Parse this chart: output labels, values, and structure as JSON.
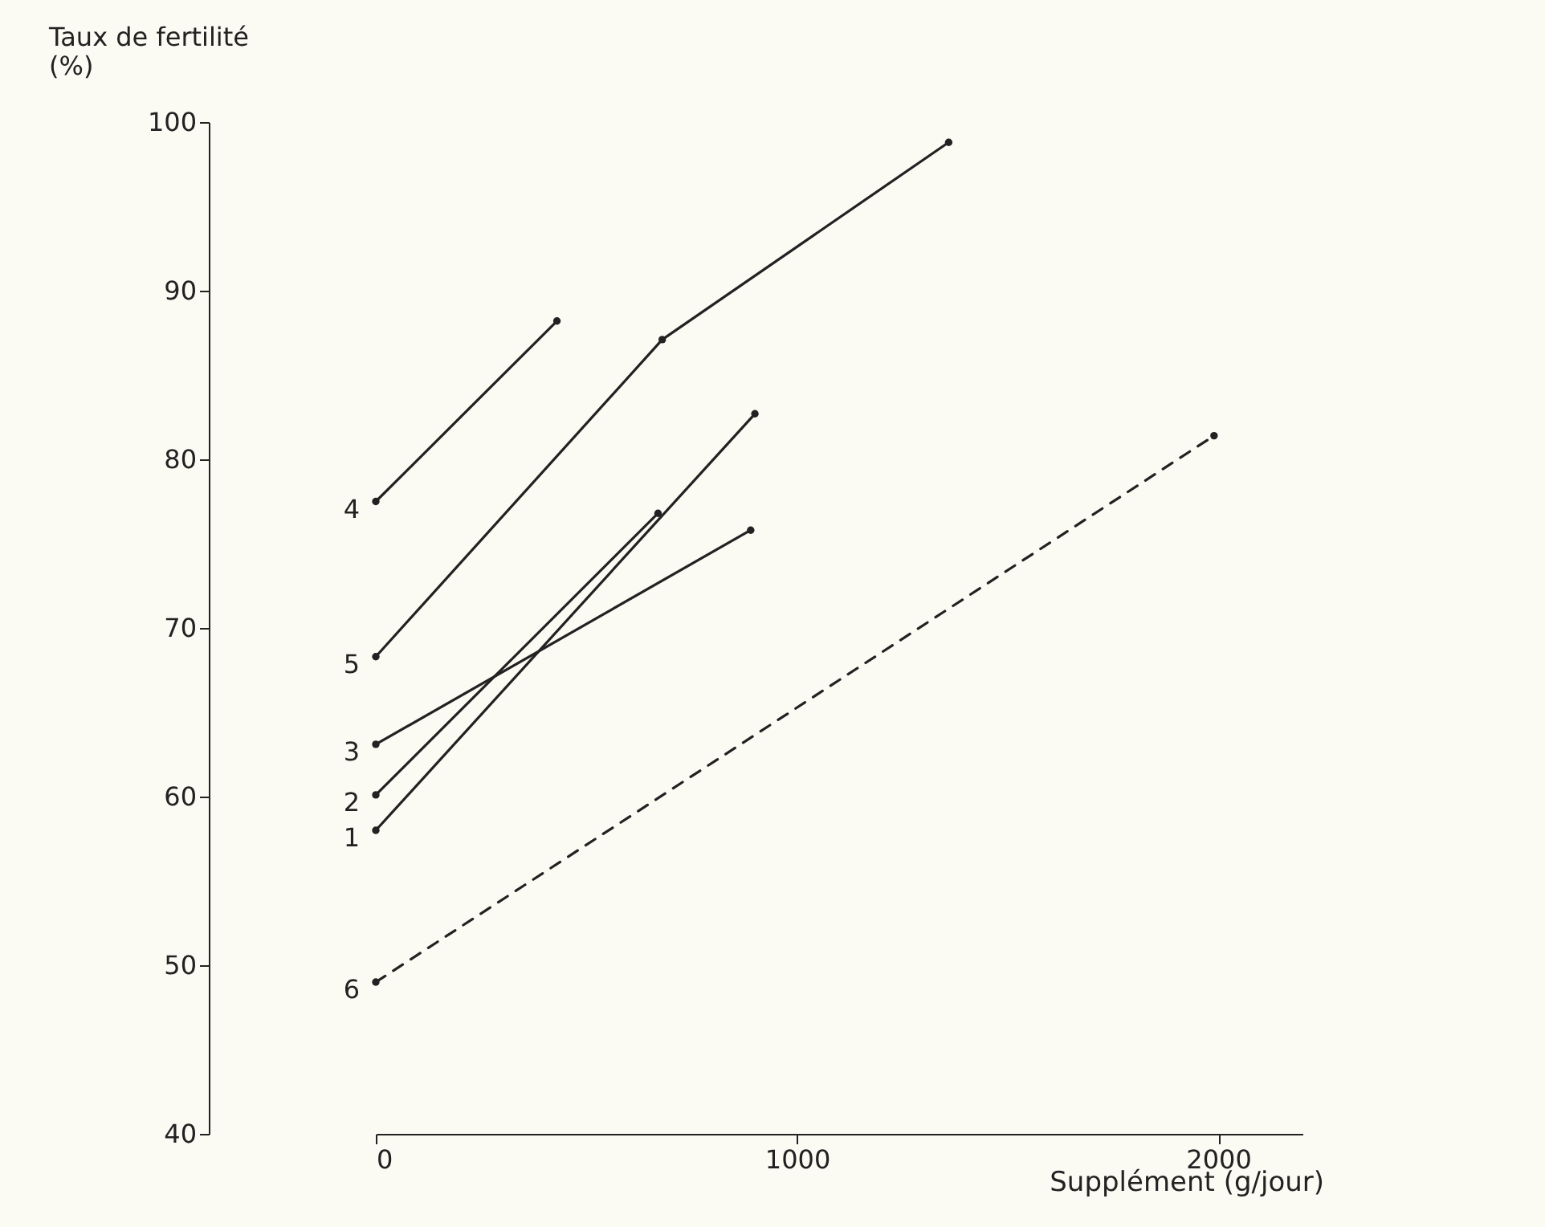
{
  "chart_data": {
    "type": "line",
    "xlabel": "Supplément (g/jour)",
    "ylabel": "Taux de fertilité (%)",
    "xlim": [
      0,
      2200
    ],
    "ylim": [
      40,
      100
    ],
    "xticks": [
      0,
      1000,
      2000
    ],
    "yticks": [
      40,
      50,
      60,
      70,
      80,
      90,
      100
    ],
    "marker": "circle",
    "grid": false,
    "series": [
      {
        "name": "1",
        "color": "#222222",
        "x": [
          0,
          900
        ],
        "values": [
          58,
          82.7
        ],
        "line_style": "solid"
      },
      {
        "name": "2",
        "color": "#222222",
        "x": [
          0,
          670
        ],
        "values": [
          60.1,
          76.8
        ],
        "line_style": "solid"
      },
      {
        "name": "3",
        "color": "#222222",
        "x": [
          0,
          890
        ],
        "values": [
          63.1,
          75.8
        ],
        "line_style": "solid"
      },
      {
        "name": "4",
        "color": "#222222",
        "x": [
          0,
          430
        ],
        "values": [
          77.5,
          88.2
        ],
        "line_style": "solid"
      },
      {
        "name": "5",
        "color": "#222222",
        "x": [
          0,
          680,
          1360
        ],
        "values": [
          68.3,
          87.1,
          98.8
        ],
        "line_style": "solid"
      },
      {
        "name": "6",
        "color": "#222222",
        "x": [
          0,
          1990
        ],
        "values": [
          49,
          81.4
        ],
        "line_style": "dashed"
      }
    ]
  }
}
